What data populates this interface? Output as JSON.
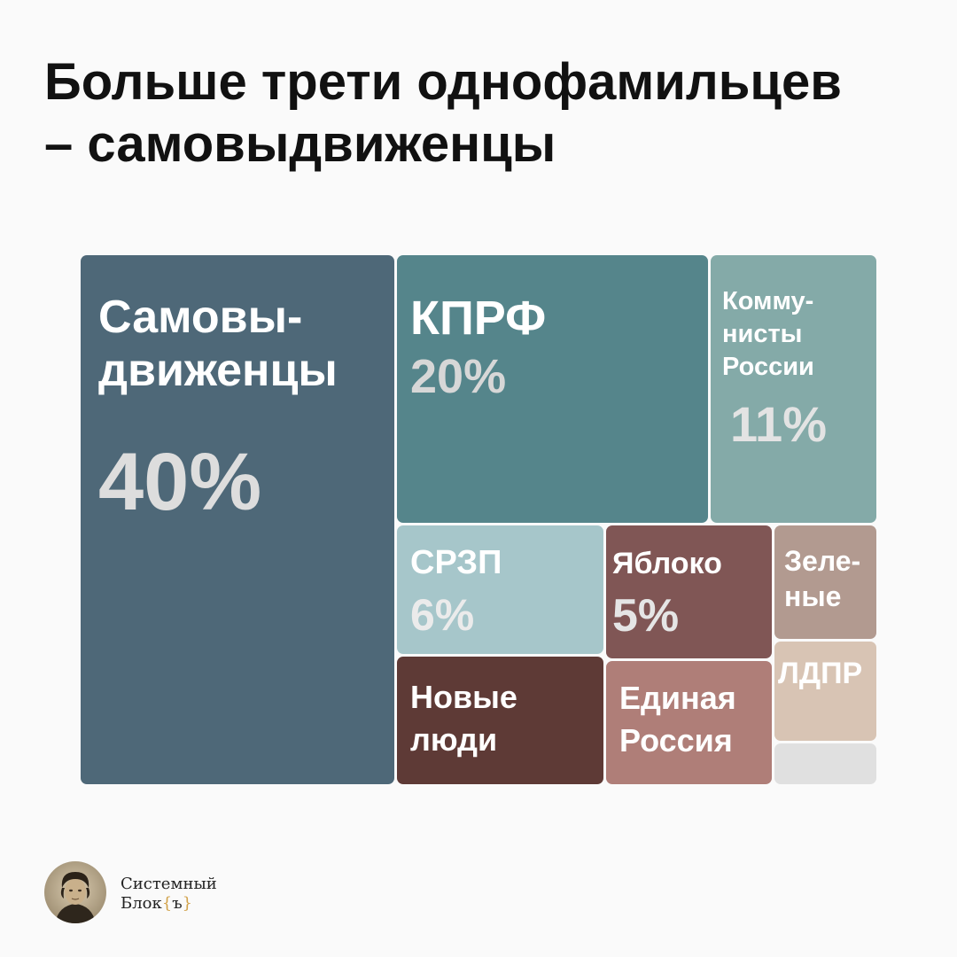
{
  "title_line1": "Больше трети однофамильцев",
  "title_line2": "– самовыдвиженцы",
  "chart_data": {
    "type": "treemap",
    "title": "Больше трети однофамильцев – самовыдвиженцы",
    "unit": "%",
    "items": [
      {
        "id": "samovydvizhentsy",
        "label": "Самовы-\nдвиженцы",
        "value_label": "40%",
        "value": 40,
        "color": "#4e6878"
      },
      {
        "id": "kprf",
        "label": "КПРФ",
        "value_label": "20%",
        "value": 20,
        "color": "#55858b"
      },
      {
        "id": "kommunisty",
        "label": "Комму-\nнисты\nРоссии",
        "value_label": "11%",
        "value": 11,
        "color": "#84aaa8"
      },
      {
        "id": "srzp",
        "label": "СРЗП",
        "value_label": "6%",
        "value": 6,
        "color": "#a6c6ca"
      },
      {
        "id": "yabloko",
        "label": "Яблоко",
        "value_label": "5%",
        "value": 5,
        "color": "#805655"
      },
      {
        "id": "novye-lyudi",
        "label": "Новые\nлюди",
        "value_label": "",
        "value": 5,
        "color": "#5e3a36"
      },
      {
        "id": "edinaya-rossiya",
        "label": "Единая\nРоссия",
        "value_label": "",
        "value": 4,
        "color": "#af7e78"
      },
      {
        "id": "zelenye",
        "label": "Зеле-\nные",
        "value_label": "",
        "value": 3,
        "color": "#b29a90"
      },
      {
        "id": "ldpr",
        "label": "ЛДПР",
        "value_label": "",
        "value": 3,
        "color": "#d8c4b4"
      },
      {
        "id": "other",
        "label": "",
        "value_label": "",
        "value": 1.5,
        "color": "#e0e0e0"
      }
    ]
  },
  "brand": {
    "line1": "Системный",
    "line2": "Блок",
    "brace_open": "{",
    "brace_char": "ъ",
    "brace_close": "}"
  }
}
